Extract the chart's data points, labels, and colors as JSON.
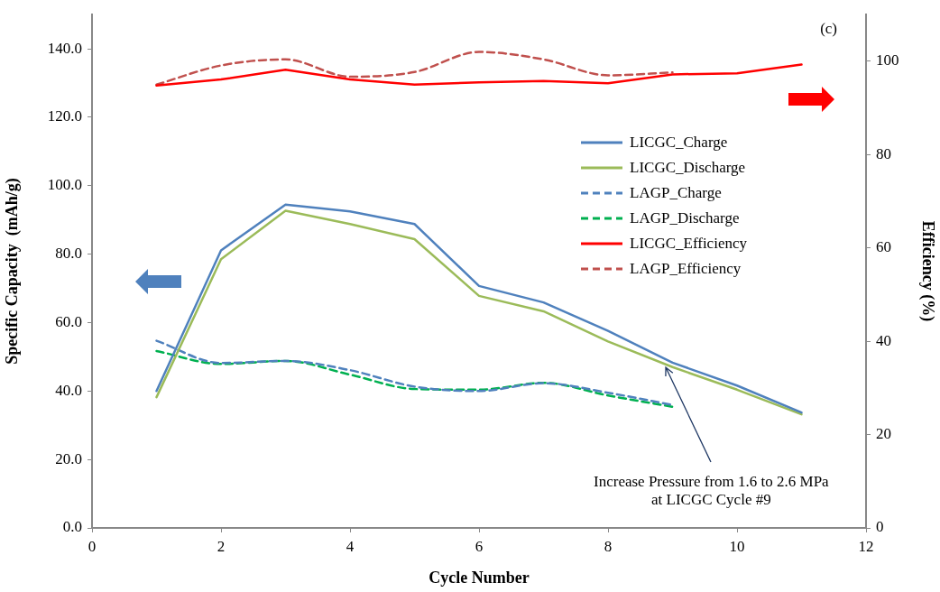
{
  "chart_data": {
    "type": "line",
    "xlabel": "Cycle Number",
    "ylabel": "Specific Capacity  (mAh/g)",
    "y2label": "Efficiency (%)",
    "x": [
      1,
      2,
      3,
      4,
      5,
      6,
      7,
      8,
      9,
      10,
      11
    ],
    "xlim": [
      0,
      12
    ],
    "xticks": [
      0,
      2,
      4,
      6,
      8,
      10,
      12
    ],
    "ylim": [
      0,
      150
    ],
    "yticks": [
      {
        "value": 0,
        "label": "0.0"
      },
      {
        "value": 20,
        "label": "20.0"
      },
      {
        "value": 40,
        "label": "40.0"
      },
      {
        "value": 60,
        "label": "60.0"
      },
      {
        "value": 80,
        "label": "80.0"
      },
      {
        "value": 100,
        "label": "100.0"
      },
      {
        "value": 120,
        "label": "120.0"
      },
      {
        "value": 140,
        "label": "140.0"
      }
    ],
    "y2lim": [
      0,
      110
    ],
    "y2ticks": [
      0,
      20,
      40,
      60,
      80,
      100
    ],
    "grid": false,
    "legend": "right",
    "marker": "none",
    "series": [
      {
        "name": "LICGC_Charge",
        "color": "#4f81bd",
        "line_style": "solid",
        "values": [
          40.0,
          81.1,
          94.5,
          92.5,
          88.8,
          70.7,
          65.9,
          57.6,
          48.3,
          41.6,
          33.7
        ]
      },
      {
        "name": "LICGC_Discharge",
        "color": "#9bbb59",
        "line_style": "solid",
        "values": [
          38.2,
          78.5,
          92.7,
          88.8,
          84.4,
          67.8,
          63.3,
          54.5,
          47.0,
          40.4,
          33.2
        ]
      },
      {
        "name": "LAGP_Charge",
        "color": "#4f81bd",
        "line_style": "dashed",
        "values": [
          54.7,
          48.2,
          48.8,
          46.1,
          41.3,
          40.0,
          42.3,
          39.5,
          35.9,
          null,
          null
        ]
      },
      {
        "name": "LAGP_Discharge",
        "color": "#00b050",
        "line_style": "dashed",
        "values": [
          51.7,
          47.9,
          48.8,
          44.8,
          40.6,
          40.4,
          42.4,
          38.7,
          35.4,
          null,
          null
        ]
      },
      {
        "name": "LICGC_Efficiency",
        "color": "#ff0000",
        "line_style": "solid",
        "axis": "y2",
        "values": [
          94.8,
          96.1,
          98.2,
          96.1,
          95.0,
          95.5,
          95.8,
          95.3,
          97.2,
          97.4,
          99.3
        ]
      },
      {
        "name": "LAGP_Efficiency",
        "color": "#c0504d",
        "line_style": "dashed",
        "axis": "y2",
        "values": [
          95.0,
          99.1,
          100.4,
          96.7,
          97.7,
          102.0,
          100.4,
          97.0,
          97.6,
          null,
          null
        ]
      }
    ],
    "annotations": [
      "(c)",
      {
        "text": "Increase Pressure  from  1.6 to 2.6 MPa\nat LICGC Cycle #9",
        "x": 8.9,
        "y": 47
      }
    ]
  }
}
